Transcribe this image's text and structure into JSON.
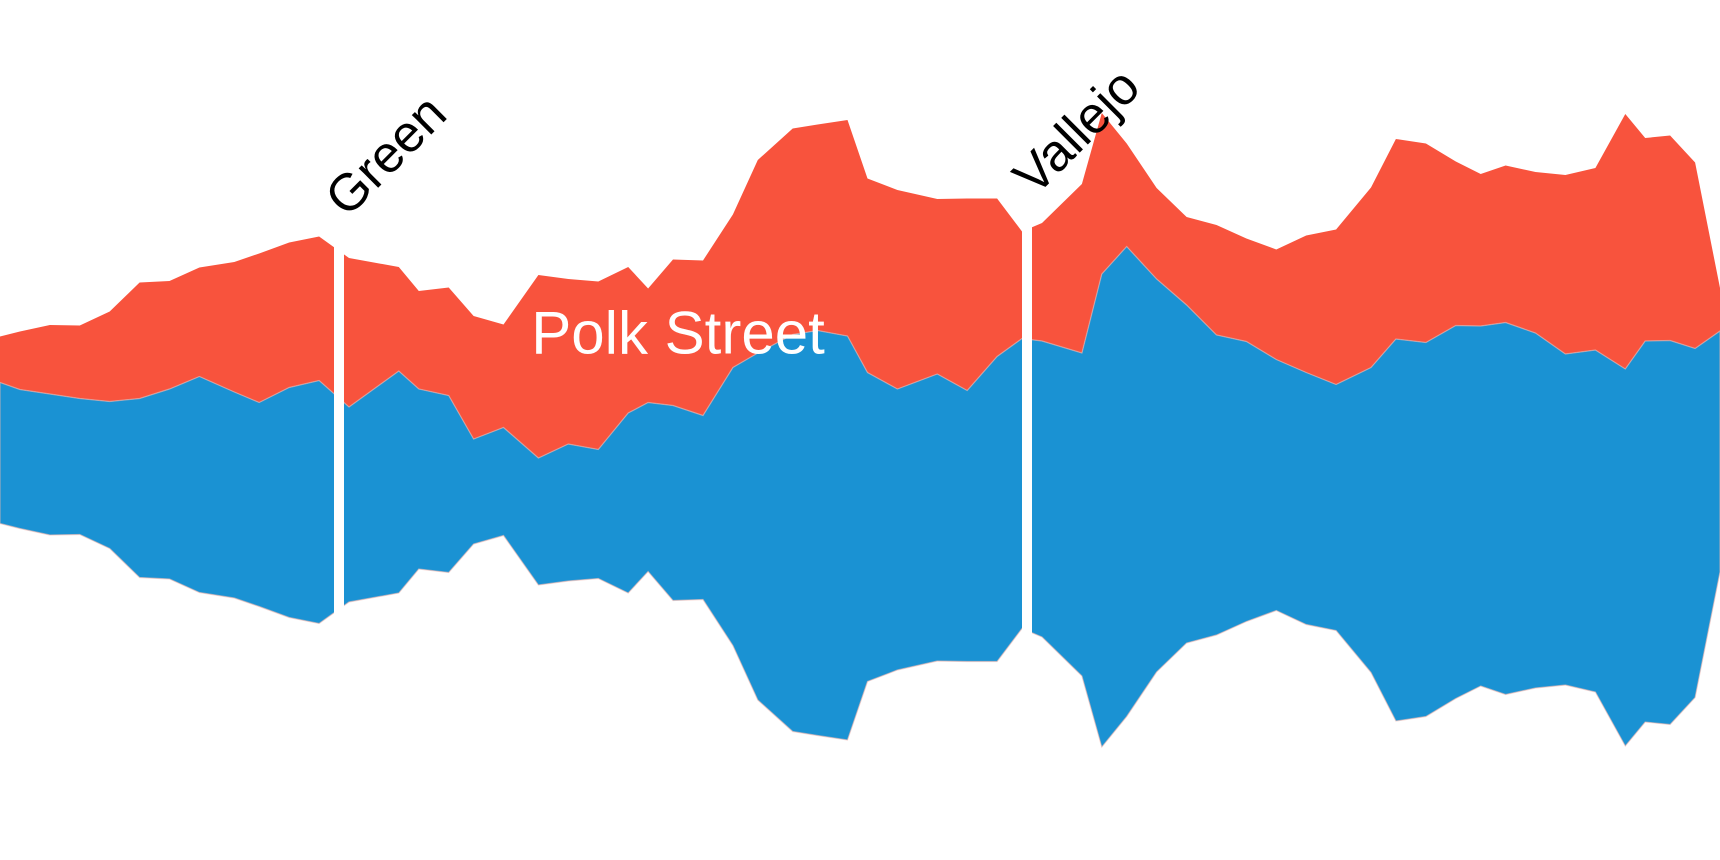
{
  "chart_data": {
    "type": "area",
    "stacked": true,
    "baseline": "streamgraph",
    "x": [
      0,
      0.2,
      0.5,
      0.8,
      1.1,
      1.4,
      1.7,
      2.0,
      2.35,
      2.6,
      2.9,
      3.2,
      3.5,
      4.0,
      4.2,
      4.5,
      4.75,
      5.05,
      5.4,
      5.7,
      6.0,
      6.3,
      6.5,
      6.75,
      7.05,
      7.35,
      7.6,
      7.95,
      8.2,
      8.5,
      8.7,
      9.0,
      9.4,
      9.7,
      10.0,
      10.25,
      10.45,
      10.85,
      11.05,
      11.3,
      11.6,
      11.9,
      12.2,
      12.5,
      12.8,
      13.1,
      13.4,
      13.75,
      14.0,
      14.3,
      14.6,
      14.85,
      15.1,
      15.4,
      15.7,
      16.0,
      16.3,
      16.5,
      16.75,
      17.0,
      17.25
    ],
    "series": [
      {
        "name": "",
        "color": "#1a92d3",
        "values": [
          1.41,
          1.39,
          1.41,
          1.36,
          1.47,
          1.79,
          1.9,
          2.16,
          2.06,
          2.04,
          2.3,
          2.43,
          1.95,
          2.22,
          1.8,
          1.77,
          1.05,
          1.08,
          1.27,
          1.37,
          1.29,
          1.8,
          1.69,
          1.95,
          1.84,
          2.78,
          3.47,
          3.97,
          4.05,
          4.04,
          3.09,
          2.81,
          2.87,
          2.71,
          3.05,
          2.9,
          2.96,
          3.23,
          4.73,
          4.7,
          3.93,
          3.38,
          3.0,
          2.8,
          2.51,
          2.52,
          2.46,
          3.05,
          3.82,
          3.74,
          3.73,
          3.6,
          3.72,
          3.55,
          3.31,
          3.42,
          3.77,
          3.81,
          3.84,
          3.49,
          2.41
        ]
      },
      {
        "name": "Polk Street",
        "color": "#f8533d",
        "values": [
          0.46,
          0.58,
          0.69,
          0.73,
          0.9,
          1.16,
          1.08,
          1.09,
          1.3,
          1.49,
          1.45,
          1.44,
          1.49,
          1.04,
          0.98,
          1.08,
          1.23,
          1.03,
          1.83,
          1.65,
          1.68,
          1.46,
          1.14,
          1.46,
          1.55,
          1.53,
          1.93,
          2.06,
          2.06,
          2.16,
          1.94,
          1.99,
          1.75,
          1.92,
          1.58,
          1.07,
          1.18,
          1.69,
          1.61,
          1.03,
          0.91,
          0.88,
          1.1,
          1.03,
          1.1,
          1.37,
          1.55,
          1.8,
          2.0,
          1.99,
          1.64,
          1.52,
          1.57,
          1.61,
          1.79,
          1.82,
          2.55,
          2.03,
          2.05,
          1.86,
          0.43
        ]
      }
    ],
    "markers": [
      {
        "x": 3.4,
        "label": "Green"
      },
      {
        "x": 10.3,
        "label": "Vallejo"
      }
    ],
    "labels": {
      "street": "Polk Street"
    },
    "axes_visible": false,
    "grid": false,
    "legend": "none",
    "xlim": [
      0,
      17.25
    ]
  }
}
